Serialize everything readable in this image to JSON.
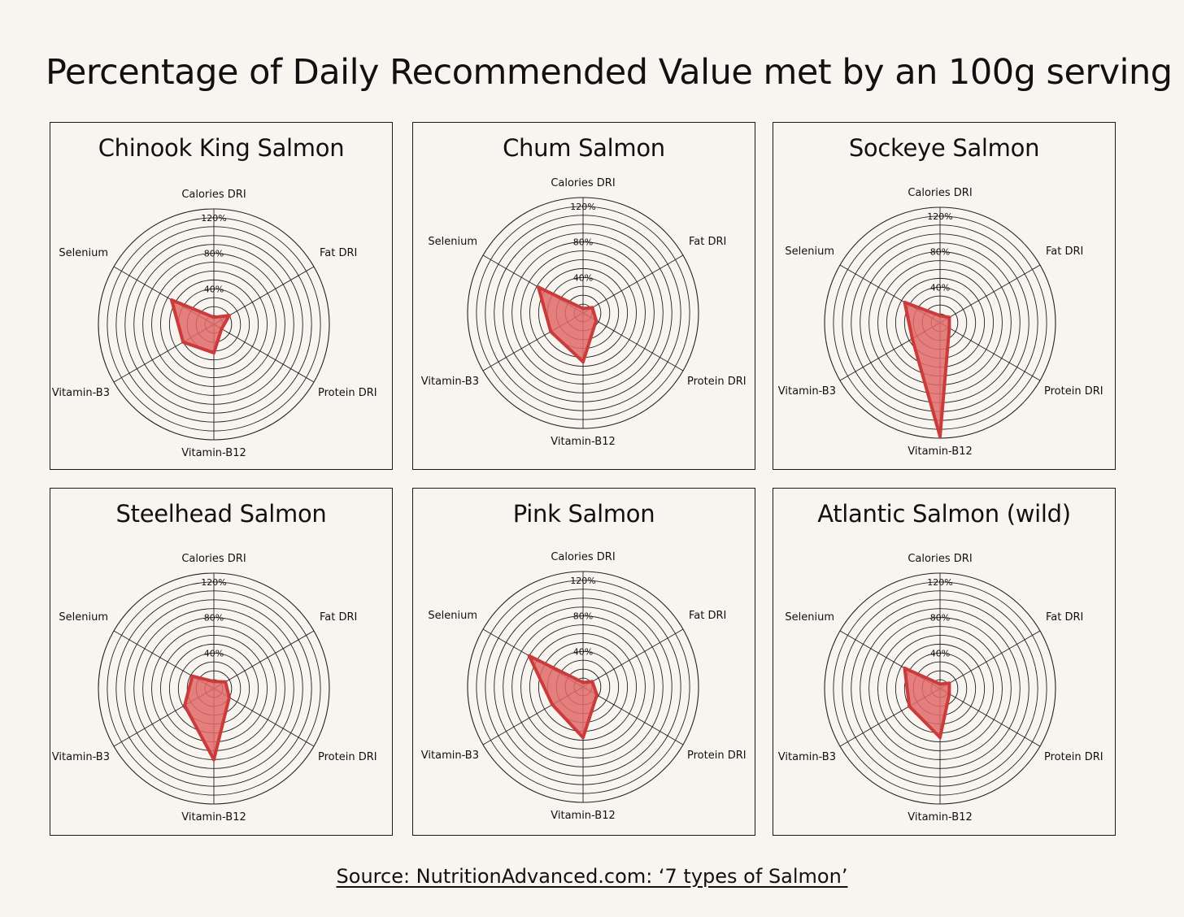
{
  "title": "Percentage of Daily Recommended Value met by an 100g serving",
  "source": "Source: NutritionAdvanced.com: ‘7 types of Salmon’",
  "colors": {
    "fill": "#e06a6a",
    "stroke": "#cc3b3b",
    "grid": "#222222"
  },
  "chart_data": [
    {
      "type": "radar",
      "title": "Chinook King Salmon",
      "axes": [
        "Calories DRI",
        "Fat DRI",
        "Protein DRI",
        "Vitamin-B12",
        "Vitamin-B3",
        "Selenium"
      ],
      "r_ticks": [
        "0%",
        "40%",
        "80%",
        "120%"
      ],
      "r_range": [
        0,
        130
      ],
      "values": [
        8,
        20,
        10,
        32,
        40,
        55
      ]
    },
    {
      "type": "radar",
      "title": "Chum Salmon",
      "axes": [
        "Calories DRI",
        "Fat DRI",
        "Protein DRI",
        "Vitamin-B12",
        "Vitamin-B3",
        "Selenium"
      ],
      "r_ticks": [
        "0%",
        "40%",
        "80%",
        "120%"
      ],
      "r_range": [
        0,
        130
      ],
      "values": [
        5,
        12,
        17,
        55,
        42,
        58
      ]
    },
    {
      "type": "radar",
      "title": "Sockeye Salmon",
      "axes": [
        "Calories DRI",
        "Fat DRI",
        "Protein DRI",
        "Vitamin-B12",
        "Vitamin-B3",
        "Selenium"
      ],
      "r_ticks": [
        "0%",
        "40%",
        "80%",
        "120%"
      ],
      "r_range": [
        0,
        130
      ],
      "values": [
        8,
        12,
        12,
        128,
        36,
        46
      ]
    },
    {
      "type": "radar",
      "title": "Steelhead Salmon",
      "axes": [
        "Calories DRI",
        "Fat DRI",
        "Protein DRI",
        "Vitamin-B12",
        "Vitamin-B3",
        "Selenium"
      ],
      "r_ticks": [
        "0%",
        "40%",
        "80%",
        "120%"
      ],
      "r_range": [
        0,
        130
      ],
      "values": [
        8,
        15,
        20,
        80,
        38,
        28
      ]
    },
    {
      "type": "radar",
      "title": "Pink Salmon",
      "axes": [
        "Calories DRI",
        "Fat DRI",
        "Protein DRI",
        "Vitamin-B12",
        "Vitamin-B3",
        "Selenium"
      ],
      "r_ticks": [
        "0%",
        "40%",
        "80%",
        "120%"
      ],
      "r_range": [
        0,
        130
      ],
      "values": [
        5,
        12,
        18,
        57,
        40,
        70
      ]
    },
    {
      "type": "radar",
      "title": "Atlantic Salmon (wild)",
      "axes": [
        "Calories DRI",
        "Fat DRI",
        "Protein DRI",
        "Vitamin-B12",
        "Vitamin-B3",
        "Selenium"
      ],
      "r_ticks": [
        "0%",
        "40%",
        "80%",
        "120%"
      ],
      "r_range": [
        0,
        130
      ],
      "values": [
        5,
        12,
        12,
        55,
        40,
        46
      ]
    }
  ]
}
